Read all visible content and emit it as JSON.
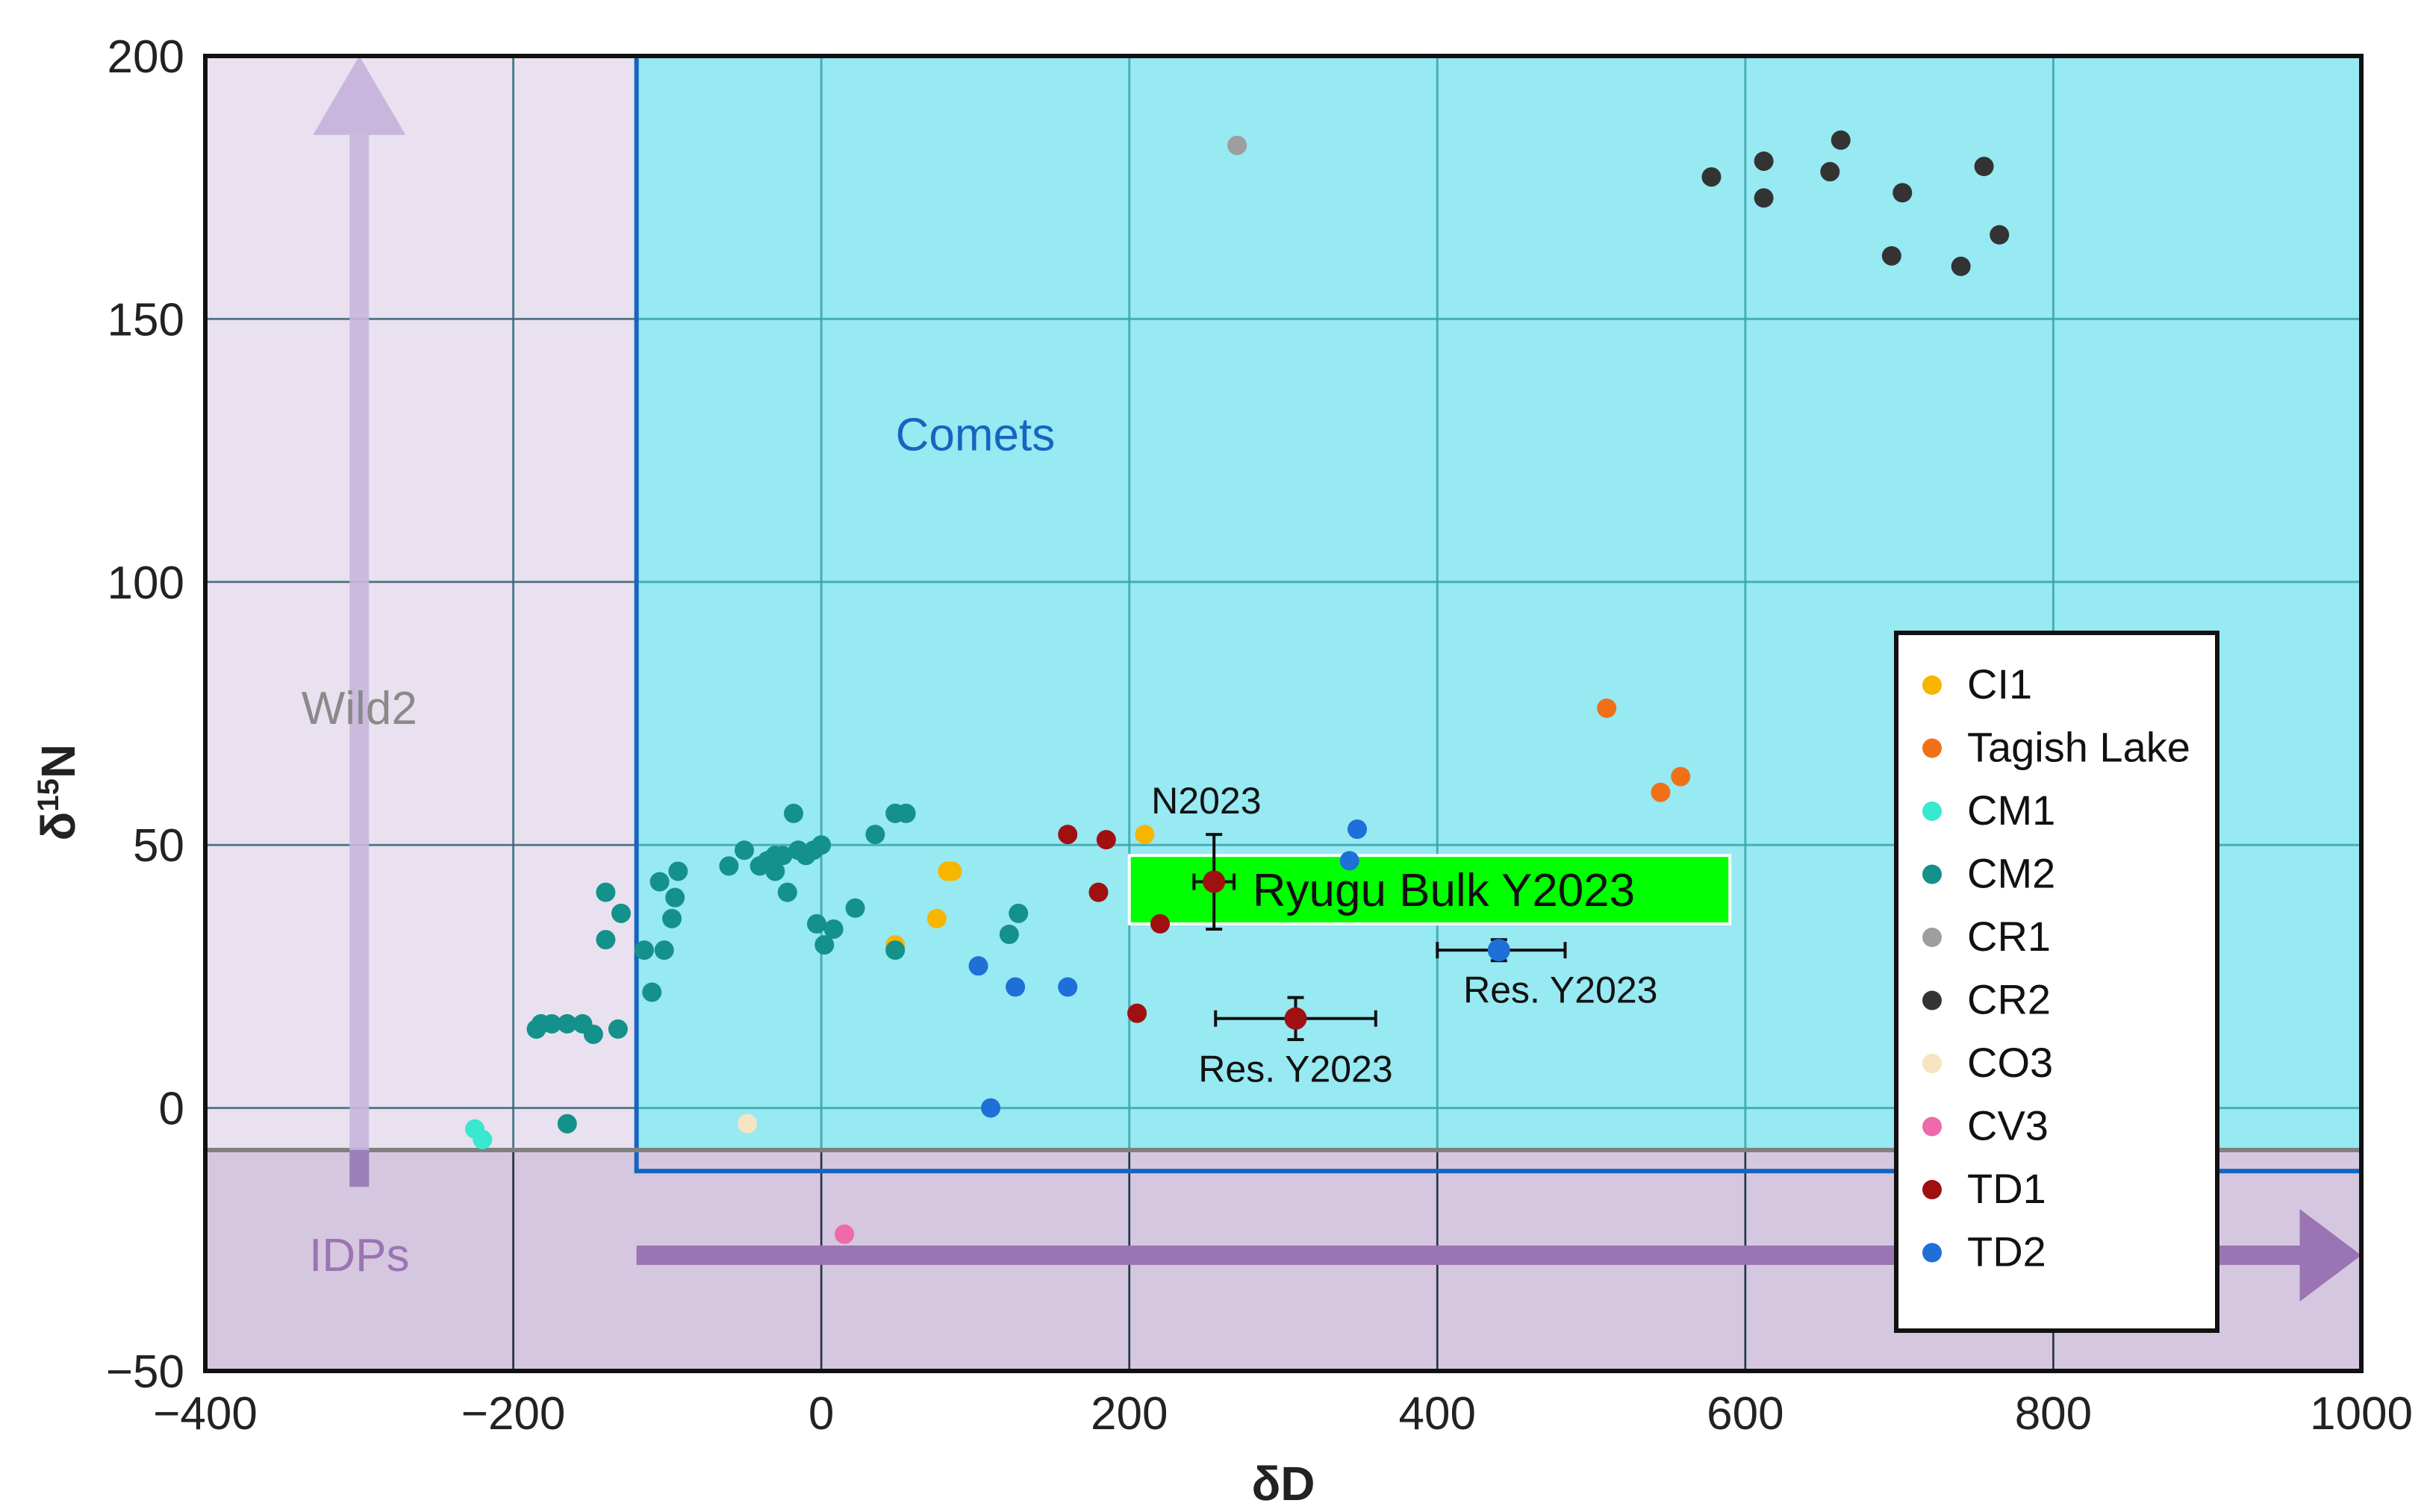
{
  "chart_data": {
    "type": "scatter",
    "xlabel": "δD",
    "ylabel_main": "δ",
    "ylabel_sup": "15",
    "ylabel_tail": "N",
    "xlim": [
      -400,
      1000
    ],
    "ylim": [
      -50,
      200
    ],
    "x_ticks": [
      -400,
      -200,
      0,
      200,
      400,
      600,
      800,
      1000
    ],
    "y_ticks": [
      -50,
      0,
      50,
      100,
      150,
      200
    ],
    "x_tick_labels": [
      "−400",
      "−200",
      "0",
      "200",
      "400",
      "600",
      "800",
      "1000"
    ],
    "y_tick_labels": [
      "−50",
      "0",
      "50",
      "100",
      "150",
      "200"
    ],
    "grid": true,
    "legend_position": "bottom-right",
    "regions": [
      {
        "name": "Wild2",
        "color": "#e9e1ef",
        "x_range": [
          -400,
          -120
        ],
        "y_range": [
          -8,
          200
        ]
      },
      {
        "name": "Comets",
        "color": "#97e9f2",
        "border": "#1565c0",
        "x_range": [
          -120,
          1000
        ],
        "y_range": [
          -12,
          200
        ]
      },
      {
        "name": "IDPs",
        "color": "#d6c7e0",
        "x_range": [
          -400,
          1000
        ],
        "y_range": [
          -50,
          -8
        ]
      }
    ],
    "region_labels": {
      "wild2": "Wild2",
      "comets": "Comets",
      "idps": "IDPs"
    },
    "ryugu": {
      "label": "Ryugu Bulk Y2023",
      "box_x": [
        200,
        590
      ],
      "box_y": [
        35,
        48
      ],
      "color": "#00ff00"
    },
    "annotations": [
      {
        "label": "N2023",
        "x": 255,
        "y": 43,
        "xerr": [
          242,
          268
        ],
        "yerr": [
          34,
          52
        ],
        "color": "#a01010",
        "text_x": 250,
        "text_y": 56
      },
      {
        "label": "Res. Y2023",
        "x": 308,
        "y": 17,
        "xerr": [
          256,
          360
        ],
        "yerr": [
          13,
          21
        ],
        "color": "#a01010",
        "text_x": 308,
        "text_y": 5
      },
      {
        "label": "Res. Y2023",
        "x": 440,
        "y": 30,
        "xerr": [
          400,
          483
        ],
        "yerr": [
          28,
          32
        ],
        "color": "#1e6fd8",
        "text_x": 480,
        "text_y": 20
      }
    ],
    "series": [
      {
        "name": "CI1",
        "color": "#f7b500",
        "points": [
          [
            85,
            45
          ],
          [
            82,
            45
          ],
          [
            75,
            36
          ],
          [
            48,
            31
          ],
          [
            210,
            52
          ]
        ]
      },
      {
        "name": "Tagish Lake",
        "color": "#f07018",
        "points": [
          [
            510,
            76
          ],
          [
            545,
            60
          ],
          [
            558,
            63
          ]
        ]
      },
      {
        "name": "CM1",
        "color": "#3ae8d0",
        "points": [
          [
            -225,
            -4
          ],
          [
            -220,
            -6
          ]
        ]
      },
      {
        "name": "CM2",
        "color": "#14918a",
        "points": [
          [
            -185,
            15
          ],
          [
            -182,
            16
          ],
          [
            -175,
            16
          ],
          [
            -165,
            16
          ],
          [
            -155,
            16
          ],
          [
            -148,
            14
          ],
          [
            -132,
            15
          ],
          [
            -140,
            32
          ],
          [
            -140,
            41
          ],
          [
            -130,
            37
          ],
          [
            -115,
            30
          ],
          [
            -110,
            22
          ],
          [
            -102,
            30
          ],
          [
            -105,
            43
          ],
          [
            -97,
            36
          ],
          [
            -95,
            40
          ],
          [
            -93,
            45
          ],
          [
            -165,
            -3
          ],
          [
            -60,
            46
          ],
          [
            -50,
            49
          ],
          [
            -40,
            46
          ],
          [
            -35,
            47
          ],
          [
            -30,
            45
          ],
          [
            -30,
            48
          ],
          [
            -25,
            48
          ],
          [
            -22,
            41
          ],
          [
            -18,
            56
          ],
          [
            -15,
            49
          ],
          [
            -10,
            48
          ],
          [
            -5,
            49
          ],
          [
            0,
            50
          ],
          [
            -3,
            35
          ],
          [
            2,
            31
          ],
          [
            8,
            34
          ],
          [
            22,
            38
          ],
          [
            35,
            52
          ],
          [
            48,
            30
          ],
          [
            48,
            56
          ],
          [
            55,
            56
          ],
          [
            122,
            33
          ],
          [
            128,
            37
          ]
        ]
      },
      {
        "name": "CR1",
        "color": "#9e9e9e",
        "points": [
          [
            270,
            183
          ]
        ]
      },
      {
        "name": "CR2",
        "color": "#333333",
        "points": [
          [
            578,
            177
          ],
          [
            612,
            180
          ],
          [
            612,
            173
          ],
          [
            655,
            178
          ],
          [
            662,
            184
          ],
          [
            695,
            162
          ],
          [
            702,
            174
          ],
          [
            740,
            160
          ],
          [
            755,
            179
          ],
          [
            765,
            166
          ]
        ]
      },
      {
        "name": "CO3",
        "color": "#f6e4c0",
        "points": [
          [
            -48,
            -3
          ]
        ]
      },
      {
        "name": "CV3",
        "color": "#ee6aaa",
        "points": [
          [
            15,
            -24
          ]
        ]
      },
      {
        "name": "TD1",
        "color": "#a01010",
        "points": [
          [
            160,
            52
          ],
          [
            185,
            51
          ],
          [
            180,
            41
          ],
          [
            220,
            35
          ],
          [
            205,
            18
          ]
        ]
      },
      {
        "name": "TD2",
        "color": "#1e6fd8",
        "points": [
          [
            102,
            27
          ],
          [
            126,
            23
          ],
          [
            160,
            23
          ],
          [
            110,
            0
          ],
          [
            343,
            47
          ],
          [
            348,
            53
          ]
        ]
      }
    ]
  }
}
